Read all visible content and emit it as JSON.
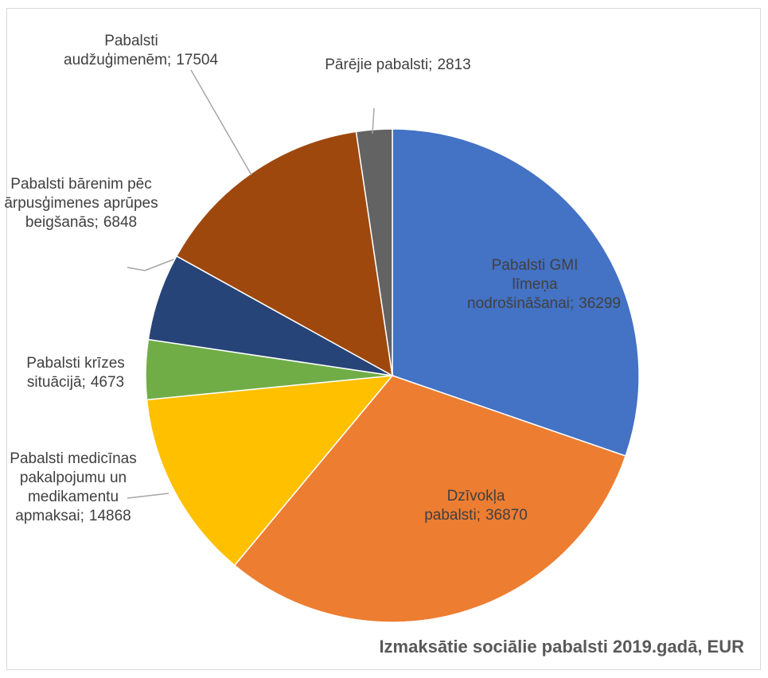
{
  "chart_data": {
    "type": "pie",
    "title": "Izmaksātie sociālie pabalsti 2019.gadā, EUR",
    "categories": [
      "Pabalsti GMI līmeņa nodrošināšanai;",
      "Dzīvokļa pabalsti;",
      "Pabalsti medicīnas pakalpojumu un medikamentu apmaksai;",
      "Pabalsti krīzes situācijā;",
      "Pabalsti bārenim pēc ārpusģimenes aprūpes beigšanās;",
      "Pabalsti audžuģimenēm;",
      "Pārējie pabalsti;"
    ],
    "values": [
      36299,
      36870,
      14868,
      4673,
      6848,
      17504,
      2813
    ],
    "colors": [
      "#4472c4",
      "#ed7d31",
      "#ffc000",
      "#70ad47",
      "#264478",
      "#9e480e",
      "#636363"
    ]
  }
}
